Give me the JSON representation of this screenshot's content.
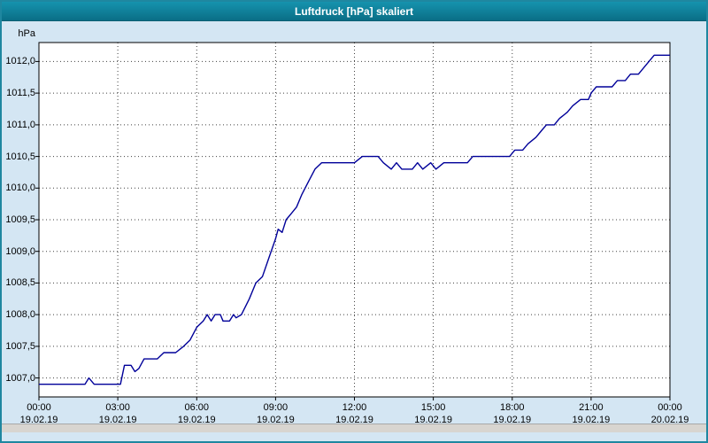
{
  "window": {
    "title": "Luftdruck [hPa] skaliert"
  },
  "chart_data": {
    "type": "line",
    "title": "Luftdruck [hPa] skaliert",
    "xlabel": "",
    "ylabel": "hPa",
    "grid": true,
    "legend": "none",
    "ylim": [
      1006.7,
      1012.3
    ],
    "xlim_hours": [
      0,
      24
    ],
    "colors": {
      "line": "#000099",
      "grid": "#404040",
      "plot_background": "#ffffff",
      "page_background": "#d4e6f3",
      "titlebar": "#0f7f99",
      "plot_border": "#000000"
    },
    "y_ticks": [
      {
        "value": 1007.0,
        "label": "1007,0"
      },
      {
        "value": 1007.5,
        "label": "1007,5"
      },
      {
        "value": 1008.0,
        "label": "1008,0"
      },
      {
        "value": 1008.5,
        "label": "1008,5"
      },
      {
        "value": 1009.0,
        "label": "1009,0"
      },
      {
        "value": 1009.5,
        "label": "1009,5"
      },
      {
        "value": 1010.0,
        "label": "1010,0"
      },
      {
        "value": 1010.5,
        "label": "1010,5"
      },
      {
        "value": 1011.0,
        "label": "1011,0"
      },
      {
        "value": 1011.5,
        "label": "1011,5"
      },
      {
        "value": 1012.0,
        "label": "1012,0"
      }
    ],
    "x_ticks": [
      {
        "hour": 0,
        "time": "00:00",
        "date": "19.02.19"
      },
      {
        "hour": 3,
        "time": "03:00",
        "date": "19.02.19"
      },
      {
        "hour": 6,
        "time": "06:00",
        "date": "19.02.19"
      },
      {
        "hour": 9,
        "time": "09:00",
        "date": "19.02.19"
      },
      {
        "hour": 12,
        "time": "12:00",
        "date": "19.02.19"
      },
      {
        "hour": 15,
        "time": "15:00",
        "date": "19.02.19"
      },
      {
        "hour": 18,
        "time": "18:00",
        "date": "19.02.19"
      },
      {
        "hour": 21,
        "time": "21:00",
        "date": "19.02.19"
      },
      {
        "hour": 24,
        "time": "00:00",
        "date": "20.02.19"
      }
    ],
    "series": [
      {
        "name": "Luftdruck",
        "unit": "hPa",
        "color": "#000099",
        "points": [
          [
            0.0,
            1006.9
          ],
          [
            1.75,
            1006.9
          ],
          [
            1.9,
            1007.0
          ],
          [
            2.1,
            1006.9
          ],
          [
            3.1,
            1006.9
          ],
          [
            3.25,
            1007.2
          ],
          [
            3.5,
            1007.2
          ],
          [
            3.65,
            1007.1
          ],
          [
            3.8,
            1007.15
          ],
          [
            4.0,
            1007.3
          ],
          [
            4.5,
            1007.3
          ],
          [
            4.75,
            1007.4
          ],
          [
            5.2,
            1007.4
          ],
          [
            5.5,
            1007.5
          ],
          [
            5.75,
            1007.6
          ],
          [
            6.0,
            1007.8
          ],
          [
            6.25,
            1007.9
          ],
          [
            6.4,
            1008.0
          ],
          [
            6.55,
            1007.9
          ],
          [
            6.7,
            1008.0
          ],
          [
            6.9,
            1008.0
          ],
          [
            7.0,
            1007.9
          ],
          [
            7.25,
            1007.9
          ],
          [
            7.4,
            1008.0
          ],
          [
            7.5,
            1007.95
          ],
          [
            7.7,
            1008.0
          ],
          [
            8.0,
            1008.25
          ],
          [
            8.25,
            1008.5
          ],
          [
            8.5,
            1008.6
          ],
          [
            8.75,
            1008.9
          ],
          [
            9.0,
            1009.2
          ],
          [
            9.1,
            1009.35
          ],
          [
            9.25,
            1009.3
          ],
          [
            9.4,
            1009.5
          ],
          [
            9.6,
            1009.6
          ],
          [
            9.8,
            1009.7
          ],
          [
            10.0,
            1009.9
          ],
          [
            10.25,
            1010.1
          ],
          [
            10.5,
            1010.3
          ],
          [
            10.75,
            1010.4
          ],
          [
            11.5,
            1010.4
          ],
          [
            12.0,
            1010.4
          ],
          [
            12.3,
            1010.5
          ],
          [
            12.9,
            1010.5
          ],
          [
            13.1,
            1010.4
          ],
          [
            13.4,
            1010.3
          ],
          [
            13.6,
            1010.4
          ],
          [
            13.8,
            1010.3
          ],
          [
            14.2,
            1010.3
          ],
          [
            14.4,
            1010.4
          ],
          [
            14.6,
            1010.3
          ],
          [
            14.9,
            1010.4
          ],
          [
            15.1,
            1010.3
          ],
          [
            15.4,
            1010.4
          ],
          [
            16.3,
            1010.4
          ],
          [
            16.5,
            1010.5
          ],
          [
            17.9,
            1010.5
          ],
          [
            18.1,
            1010.6
          ],
          [
            18.4,
            1010.6
          ],
          [
            18.6,
            1010.7
          ],
          [
            18.9,
            1010.8
          ],
          [
            19.1,
            1010.9
          ],
          [
            19.3,
            1011.0
          ],
          [
            19.6,
            1011.0
          ],
          [
            19.8,
            1011.1
          ],
          [
            20.1,
            1011.2
          ],
          [
            20.3,
            1011.3
          ],
          [
            20.6,
            1011.4
          ],
          [
            20.9,
            1011.4
          ],
          [
            21.0,
            1011.5
          ],
          [
            21.2,
            1011.6
          ],
          [
            21.8,
            1011.6
          ],
          [
            22.0,
            1011.7
          ],
          [
            22.3,
            1011.7
          ],
          [
            22.5,
            1011.8
          ],
          [
            22.8,
            1011.8
          ],
          [
            23.0,
            1011.9
          ],
          [
            23.2,
            1012.0
          ],
          [
            23.4,
            1012.1
          ],
          [
            24.0,
            1012.1
          ]
        ]
      }
    ]
  }
}
